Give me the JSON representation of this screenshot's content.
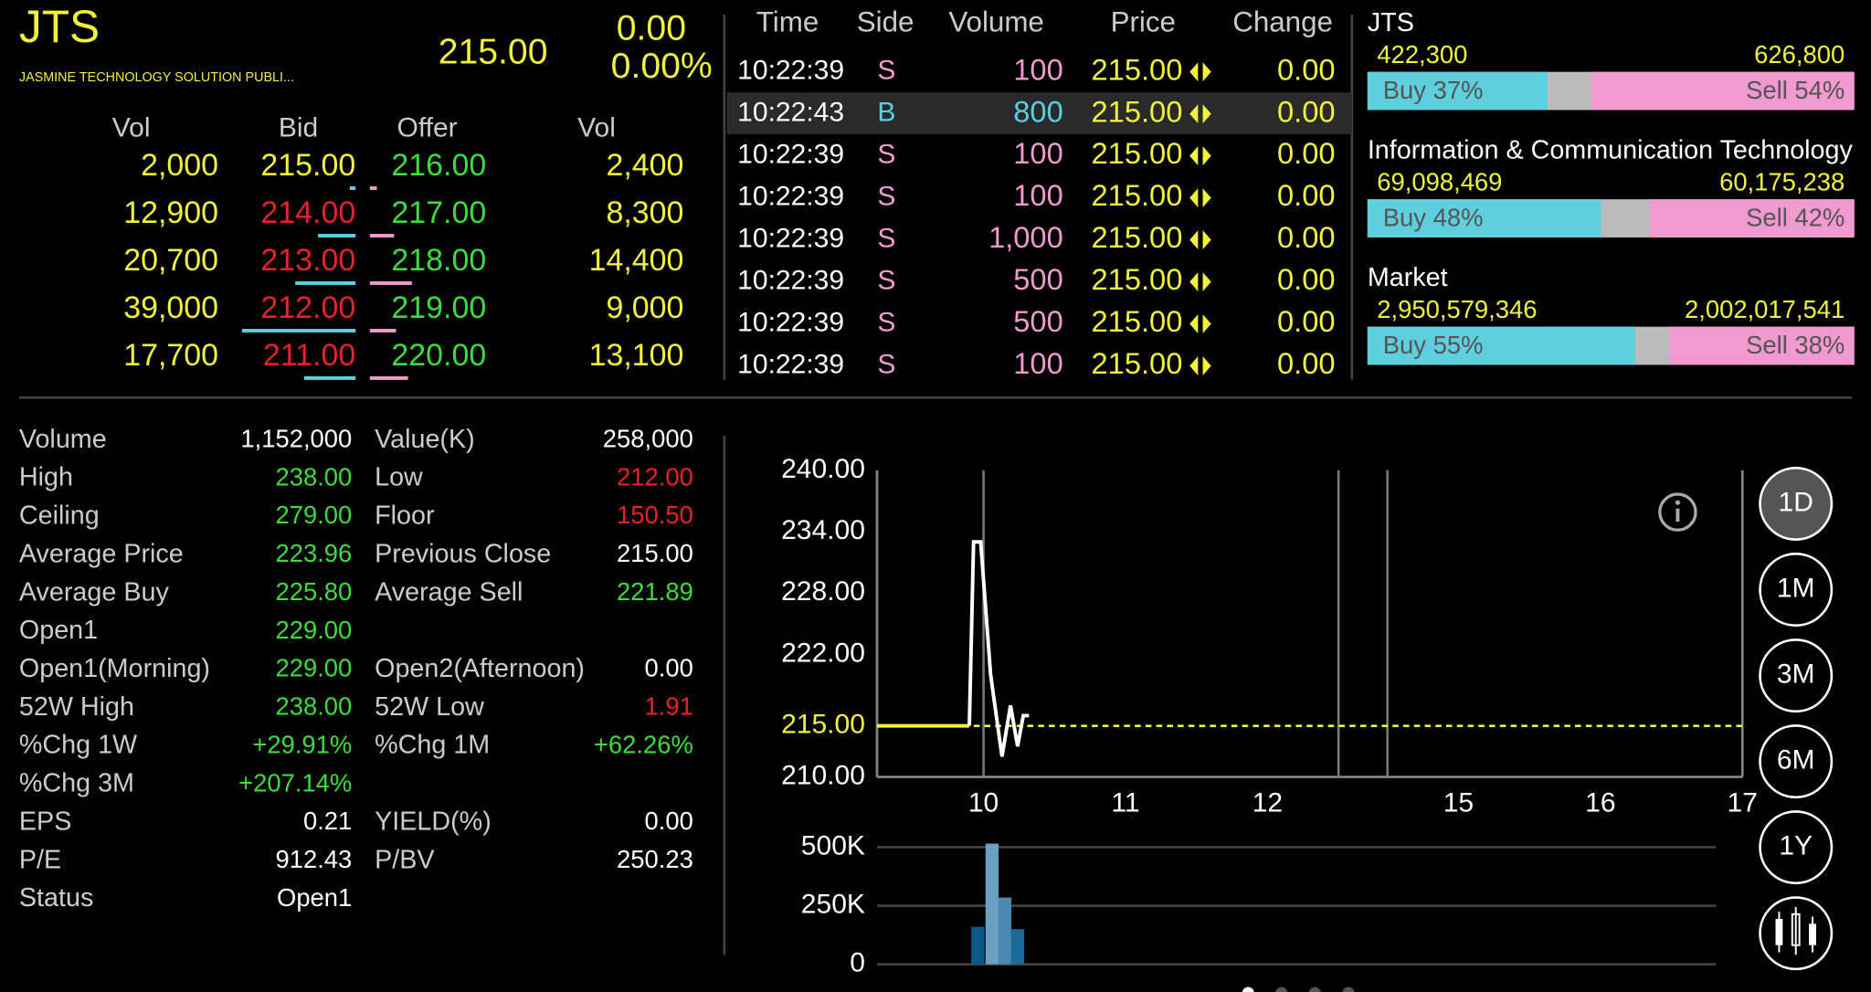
{
  "header": {
    "symbol": "JTS",
    "name": "JASMINE TECHNOLOGY SOLUTION PUBLI...",
    "price": "215.00",
    "change": "0.00",
    "change_percent": "0.00%"
  },
  "order_book": {
    "columns": [
      "Vol",
      "Bid",
      "Offer",
      "Vol"
    ],
    "rows": [
      {
        "bid_volume": "2,000",
        "bid": "215.00",
        "bid_color": "#f2f23a",
        "offer": "216.00",
        "offer_volume": "2,400"
      },
      {
        "bid_volume": "12,900",
        "bid": "214.00",
        "bid_color": "#e8202a",
        "offer": "217.00",
        "offer_volume": "8,300"
      },
      {
        "bid_volume": "20,700",
        "bid": "213.00",
        "bid_color": "#e8202a",
        "offer": "218.00",
        "offer_volume": "14,400"
      },
      {
        "bid_volume": "39,000",
        "bid": "212.00",
        "bid_color": "#e8202a",
        "offer": "219.00",
        "offer_volume": "9,000"
      },
      {
        "bid_volume": "17,700",
        "bid": "211.00",
        "bid_color": "#e8202a",
        "offer": "220.00",
        "offer_volume": "13,100"
      }
    ]
  },
  "trades": {
    "columns": [
      "Time",
      "Side",
      "Volume",
      "Price",
      "Change"
    ],
    "side_colors": {
      "S": "#f09ad0",
      "B": "#5ad0e0"
    },
    "highlighted_row": 1,
    "rows": [
      [
        "10:22:39",
        "S",
        "100",
        "215.00",
        "0.00"
      ],
      [
        "10:22:43",
        "B",
        "800",
        "215.00",
        "0.00"
      ],
      [
        "10:22:39",
        "S",
        "100",
        "215.00",
        "0.00"
      ],
      [
        "10:22:39",
        "S",
        "100",
        "215.00",
        "0.00"
      ],
      [
        "10:22:39",
        "S",
        "1,000",
        "215.00",
        "0.00"
      ],
      [
        "10:22:39",
        "S",
        "500",
        "215.00",
        "0.00"
      ],
      [
        "10:22:39",
        "S",
        "500",
        "215.00",
        "0.00"
      ],
      [
        "10:22:39",
        "S",
        "100",
        "215.00",
        "0.00"
      ]
    ]
  },
  "sentiment": [
    {
      "name": "JTS",
      "buy_volume": "422,300",
      "sell_volume": "626,800",
      "buy_pct": 37,
      "buy_label": "Buy 37%",
      "sell_pct": 54,
      "sell_label": "Sell 54%"
    },
    {
      "name": "Information & Communication Technology",
      "buy_volume": "69,098,469",
      "sell_volume": "60,175,238",
      "buy_pct": 48,
      "buy_label": "Buy 48%",
      "sell_pct": 42,
      "sell_label": "Sell 42%"
    },
    {
      "name": "Market",
      "buy_volume": "2,950,579,346",
      "sell_volume": "2,002,017,541",
      "buy_pct": 55,
      "buy_label": "Buy 55%",
      "sell_pct": 38,
      "sell_label": "Sell 38%"
    }
  ],
  "stats": [
    {
      "left": {
        "label": "Volume",
        "value": "1,152,000",
        "color": "#ffffff"
      },
      "right": {
        "label": "Value(K)",
        "value": "258,000",
        "color": "#ffffff"
      }
    },
    {
      "left": {
        "label": "High",
        "value": "238.00",
        "color": "#3ddc3d"
      },
      "right": {
        "label": "Low",
        "value": "212.00",
        "color": "#e8202a"
      }
    },
    {
      "left": {
        "label": "Ceiling",
        "value": "279.00",
        "color": "#3ddc3d"
      },
      "right": {
        "label": "Floor",
        "value": "150.50",
        "color": "#e8202a"
      }
    },
    {
      "left": {
        "label": "Average Price",
        "value": "223.96",
        "color": "#3ddc3d"
      },
      "right": {
        "label": "Previous Close",
        "value": "215.00",
        "color": "#ffffff"
      }
    },
    {
      "left": {
        "label": "Average Buy",
        "value": "225.80",
        "color": "#3ddc3d"
      },
      "right": {
        "label": "Average Sell",
        "value": "221.89",
        "color": "#3ddc3d"
      }
    },
    {
      "left": {
        "label": "Open1",
        "value": "229.00",
        "color": "#3ddc3d"
      }
    },
    {
      "left": {
        "label": "Open1(Morning)",
        "value": "229.00",
        "color": "#3ddc3d"
      },
      "right": {
        "label": "Open2(Afternoon)",
        "value": "0.00",
        "color": "#ffffff"
      }
    },
    {
      "left": {
        "label": "52W High",
        "value": "238.00",
        "color": "#3ddc3d"
      },
      "right": {
        "label": "52W Low",
        "value": "1.91",
        "color": "#e8202a"
      }
    },
    {
      "left": {
        "label": "%Chg 1W",
        "value": "+29.91%",
        "color": "#3ddc3d"
      },
      "right": {
        "label": "%Chg 1M",
        "value": "+62.26%",
        "color": "#3ddc3d"
      }
    },
    {
      "left": {
        "label": "%Chg 3M",
        "value": "+207.14%",
        "color": "#3ddc3d"
      }
    },
    {
      "left": {
        "label": "EPS",
        "value": "0.21",
        "color": "#ffffff"
      },
      "right": {
        "label": "YIELD(%)",
        "value": "0.00",
        "color": "#ffffff"
      }
    },
    {
      "left": {
        "label": "P/E",
        "value": "912.43",
        "color": "#ffffff"
      },
      "right": {
        "label": "P/BV",
        "value": "250.23",
        "color": "#ffffff"
      }
    },
    {
      "left": {
        "label": "Status",
        "value": "Open1",
        "color": "#ffffff"
      }
    }
  ],
  "chart_data": [
    {
      "type": "line",
      "xlim": [
        9.25,
        17
      ],
      "break": [
        12.5,
        14.5
      ],
      "xticks": [
        10,
        11,
        12,
        15,
        16,
        17
      ],
      "ylim": [
        210,
        240
      ],
      "yticks": [
        {
          "value": 210,
          "label": "210.00"
        },
        {
          "value": 215,
          "label": "215.00"
        },
        {
          "value": 222,
          "label": "222.00"
        },
        {
          "value": 228,
          "label": "228.00"
        },
        {
          "value": 234,
          "label": "234.00"
        },
        {
          "value": 240,
          "label": "240.00"
        }
      ],
      "reference": 215,
      "reference_color": "#f2f23a",
      "series": [
        {
          "color": "#f2f23a",
          "x": [
            9.25,
            9.9
          ],
          "values": [
            215,
            215
          ]
        },
        {
          "color": "#ffffff",
          "x": [
            9.9,
            9.93,
            9.98,
            10.05,
            10.13,
            10.19,
            10.24,
            10.28,
            10.32
          ],
          "values": [
            215,
            233,
            233,
            220,
            212,
            217,
            213,
            216,
            216
          ]
        }
      ]
    },
    {
      "type": "bar",
      "x": [
        9.96,
        10.06,
        10.15,
        10.24
      ],
      "values": [
        160000,
        515000,
        285000,
        150000
      ],
      "colors": [
        "#0a5a8a",
        "#6aa0c0",
        "#4a88b0",
        "#1a6a9a"
      ],
      "ylim": [
        0,
        550000
      ],
      "yticks": [
        0,
        {
          "value": 250000,
          "label": "250K"
        },
        {
          "value": 500000,
          "label": "500K"
        }
      ]
    }
  ],
  "periods": {
    "options": [
      "1D",
      "1M",
      "3M",
      "6M",
      "1Y"
    ],
    "selected": "1D"
  }
}
